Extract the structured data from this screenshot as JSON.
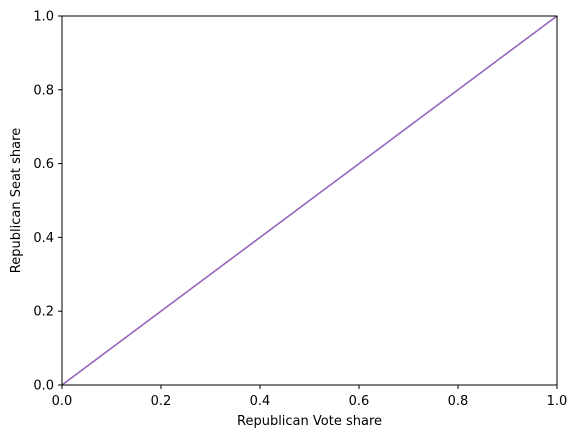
{
  "chart_data": {
    "type": "line",
    "title": "",
    "xlabel": "Republican Vote share",
    "ylabel": "Republican Seat share",
    "xlim": [
      0,
      1
    ],
    "ylim": [
      0,
      1
    ],
    "grid": false,
    "x_ticks": [
      "0.0",
      "0.2",
      "0.4",
      "0.6",
      "0.8",
      "1.0"
    ],
    "y_ticks": [
      "0.0",
      "0.2",
      "0.4",
      "0.6",
      "0.8",
      "1.0"
    ],
    "series": [
      {
        "color": "#9467bd",
        "x": [
          0,
          1
        ],
        "y": [
          0,
          1
        ]
      }
    ]
  }
}
